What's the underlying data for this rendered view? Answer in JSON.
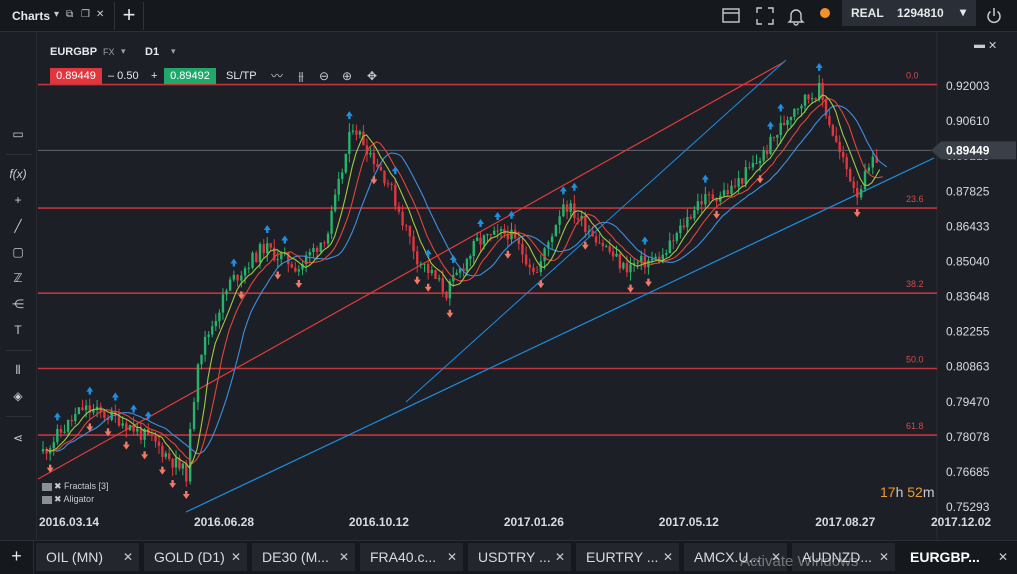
{
  "topbar": {
    "title": "Charts",
    "account_type": "REAL",
    "account_number": "1294810"
  },
  "instrument": {
    "symbol": "EURGBP",
    "market": "FX",
    "timeframe": "D1",
    "sell_price": "0.89449",
    "spread": "– 0.50",
    "buy_price": "0.89492",
    "sltp_label": "SL/TP"
  },
  "indicators": [
    "Fractals [3]",
    "Aligator"
  ],
  "timer": {
    "hours": "17",
    "h": "h",
    "minutes": "52",
    "m": "m"
  },
  "colors": {
    "sell": "#e2363f",
    "buy": "#1fa86a",
    "fib_line": "#c1353d",
    "trend_blue": "#1e8ee0",
    "trend_red": "#e23b3b",
    "fractal_up": "#1e8ee0",
    "fractal_down": "#f07866",
    "alligator_jaw": "#3d8fe0",
    "alligator_teeth": "#e2453b",
    "alligator_lips": "#a5c941",
    "accent_orange": "#f3922d"
  },
  "chart_data": {
    "type": "candlestick",
    "symbol": "EURGBP",
    "timeframe": "D1",
    "current_price": 0.89449,
    "ylim": [
      0.75293,
      0.92003
    ],
    "y_ticks": [
      "0.92003",
      "0.90610",
      "0.89218",
      "0.87825",
      "0.86433",
      "0.85040",
      "0.83648",
      "0.82255",
      "0.80863",
      "0.79470",
      "0.78078",
      "0.76685",
      "0.75293"
    ],
    "x_ticks": [
      "2016.03.14",
      "2016.06.28",
      "2016.10.12",
      "2017.01.26",
      "2017.05.12",
      "2017.08.27",
      "2017.12.02"
    ],
    "fibonacci_levels": [
      {
        "label": "0.0",
        "price": 0.9206
      },
      {
        "label": "23.6",
        "price": 0.8716
      },
      {
        "label": "38.2",
        "price": 0.8378
      },
      {
        "label": "50.0",
        "price": 0.8079
      },
      {
        "label": "61.8",
        "price": 0.7815
      }
    ],
    "price_path": [
      {
        "date": "2016.03.14",
        "close": 0.775
      },
      {
        "date": "2016.04.10",
        "close": 0.792
      },
      {
        "date": "2016.05.05",
        "close": 0.788
      },
      {
        "date": "2016.05.30",
        "close": 0.778
      },
      {
        "date": "2016.06.20",
        "close": 0.766
      },
      {
        "date": "2016.06.28",
        "close": 0.812
      },
      {
        "date": "2016.07.20",
        "close": 0.842
      },
      {
        "date": "2016.08.12",
        "close": 0.856
      },
      {
        "date": "2016.09.05",
        "close": 0.848
      },
      {
        "date": "2016.09.25",
        "close": 0.862
      },
      {
        "date": "2016.10.12",
        "close": 0.905
      },
      {
        "date": "2016.11.05",
        "close": 0.882
      },
      {
        "date": "2016.11.25",
        "close": 0.852
      },
      {
        "date": "2016.12.15",
        "close": 0.838
      },
      {
        "date": "2017.01.05",
        "close": 0.858
      },
      {
        "date": "2017.01.26",
        "close": 0.862
      },
      {
        "date": "2017.02.15",
        "close": 0.846
      },
      {
        "date": "2017.03.05",
        "close": 0.874
      },
      {
        "date": "2017.03.25",
        "close": 0.862
      },
      {
        "date": "2017.04.15",
        "close": 0.848
      },
      {
        "date": "2017.05.12",
        "close": 0.852
      },
      {
        "date": "2017.06.05",
        "close": 0.874
      },
      {
        "date": "2017.06.28",
        "close": 0.879
      },
      {
        "date": "2017.07.20",
        "close": 0.893
      },
      {
        "date": "2017.08.10",
        "close": 0.912
      },
      {
        "date": "2017.08.27",
        "close": 0.9185
      },
      {
        "date": "2017.09.10",
        "close": 0.893
      },
      {
        "date": "2017.09.22",
        "close": 0.878
      },
      {
        "date": "2017.10.08",
        "close": 0.89449
      }
    ]
  },
  "tabs": [
    {
      "label": "OIL (MN)"
    },
    {
      "label": "GOLD (D1)"
    },
    {
      "label": "DE30 (M..."
    },
    {
      "label": "FRA40.c..."
    },
    {
      "label": "USDTRY ..."
    },
    {
      "label": "EURTRY ..."
    },
    {
      "label": "AMCX.U..."
    },
    {
      "label": "AUDNZD..."
    },
    {
      "label": "EURGBP..."
    }
  ],
  "watermark": "Activate Windows"
}
